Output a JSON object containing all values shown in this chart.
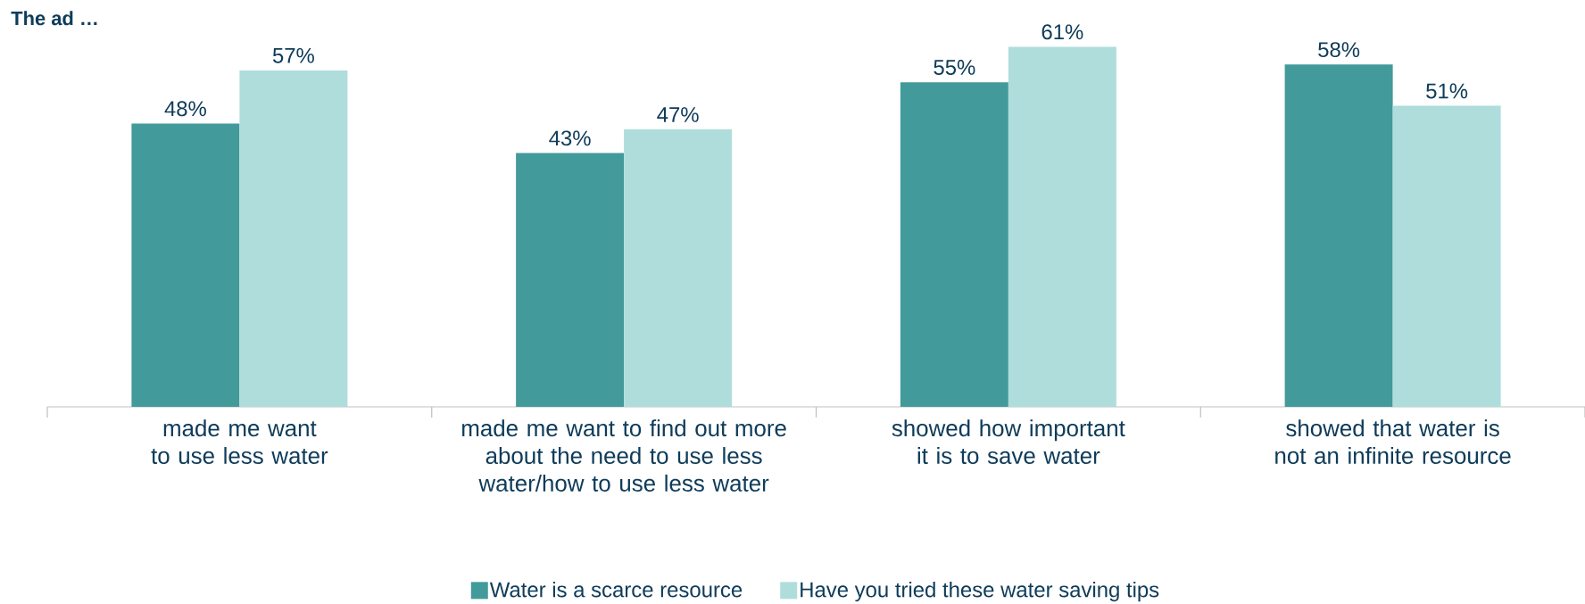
{
  "chart_data": {
    "type": "bar",
    "title": "The ad …",
    "categories": [
      "made me want to use less water",
      "made me want to find out more about the need to use less water/how to use less water",
      "showed how important it is to save water",
      "showed that water is not an infinite resource"
    ],
    "series": [
      {
        "name": "Water is a scarce resource",
        "color": "#439a9a",
        "values": [
          48,
          43,
          55,
          58
        ],
        "value_labels": [
          "48%",
          "43%",
          "55%",
          "58%"
        ]
      },
      {
        "name": "Have you tried these water saving tips",
        "color": "#aedddc",
        "values": [
          57,
          47,
          61,
          51
        ],
        "value_labels": [
          "57%",
          "47%",
          "61%",
          "51%"
        ]
      }
    ],
    "legend": "bottom"
  }
}
